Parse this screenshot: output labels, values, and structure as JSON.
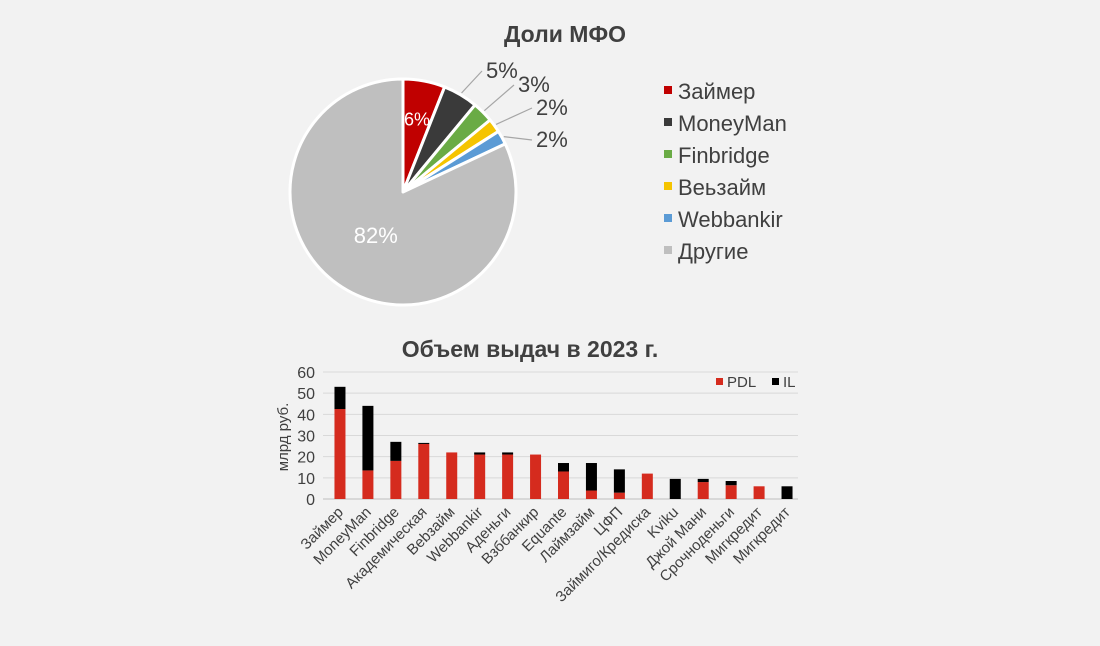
{
  "chart_data": [
    {
      "type": "pie",
      "title": "Доли МФО",
      "slices": [
        {
          "name": "Займер",
          "value": 6,
          "label": "6%",
          "color": "#c00000"
        },
        {
          "name": "MoneyMan",
          "value": 5,
          "label": "5%",
          "color": "#3a3a3a"
        },
        {
          "name": "Finbridge",
          "value": 3,
          "label": "3%",
          "color": "#6aab45"
        },
        {
          "name": "Веьзайм",
          "value": 2,
          "label": "2%",
          "color": "#f5c400"
        },
        {
          "name": "Webbankir",
          "value": 2,
          "label": "2%",
          "color": "#5b9bd5"
        },
        {
          "name": "Другие",
          "value": 82,
          "label": "82%",
          "color": "#bfbfbf"
        }
      ],
      "legend_position": "right"
    },
    {
      "type": "bar",
      "stacked": true,
      "title": "Объем выдач в 2023 г.",
      "ylabel": "млрд руб.",
      "ylim": [
        0,
        60
      ],
      "yticks": [
        0,
        10,
        20,
        30,
        40,
        50,
        60
      ],
      "grid": true,
      "legend_position": "top-right",
      "categories": [
        "Займер",
        "MoneyMan",
        "Finbridge",
        "Академическая",
        "Веbзайм",
        "Webbankir",
        "Аденьги",
        "Взббанкир",
        "Equante",
        "Лаймзайм",
        "ЦФП",
        "Займиго/Кредиска",
        "Kviku",
        "Джой Мани",
        "Срочноденьги",
        "Мигкредит",
        "Мигкредит"
      ],
      "series": [
        {
          "name": "PDL",
          "color": "#d52b1e",
          "values": [
            42.5,
            13.5,
            18,
            26,
            22,
            21,
            21,
            21,
            13,
            4,
            3,
            12,
            0,
            8,
            6.5,
            6,
            0
          ]
        },
        {
          "name": "IL",
          "color": "#000000",
          "values": [
            10.5,
            30.5,
            9,
            0.5,
            0,
            1,
            1,
            0,
            4,
            13,
            11,
            0,
            9.5,
            1.5,
            2,
            0,
            6
          ]
        }
      ]
    }
  ]
}
